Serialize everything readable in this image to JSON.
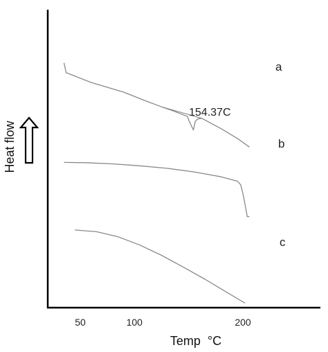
{
  "chart_data": {
    "type": "line",
    "title": "",
    "xlabel": "Temp  °C",
    "ylabel": "Heat flow",
    "xlim": [
      32,
      210
    ],
    "x_ticks": [
      50,
      100,
      200
    ],
    "grid": false,
    "series": [
      {
        "name": "a",
        "x": [
          35,
          37,
          60,
          90,
          110,
          125,
          137,
          149,
          150,
          154.37,
          156,
          158,
          162,
          180,
          195,
          206
        ],
        "values": [
          0.975,
          0.935,
          0.895,
          0.855,
          0.82,
          0.795,
          0.776,
          0.755,
          0.74,
          0.7,
          0.735,
          0.745,
          0.748,
          0.705,
          0.665,
          0.63
        ]
      },
      {
        "name": "b",
        "x": [
          35,
          55,
          80,
          105,
          130,
          155,
          180,
          195,
          198,
          200,
          202,
          204,
          206
        ],
        "values": [
          0.567,
          0.566,
          0.561,
          0.553,
          0.543,
          0.528,
          0.508,
          0.49,
          0.475,
          0.44,
          0.395,
          0.345,
          0.345
        ]
      },
      {
        "name": "c",
        "x": [
          45,
          65,
          85,
          105,
          125,
          145,
          165,
          185,
          202
        ],
        "values": [
          0.29,
          0.283,
          0.262,
          0.228,
          0.186,
          0.138,
          0.088,
          0.035,
          -0.01
        ]
      }
    ],
    "annotations": [
      {
        "text": "154.37C",
        "x": 154.37,
        "series": "a"
      }
    ]
  }
}
